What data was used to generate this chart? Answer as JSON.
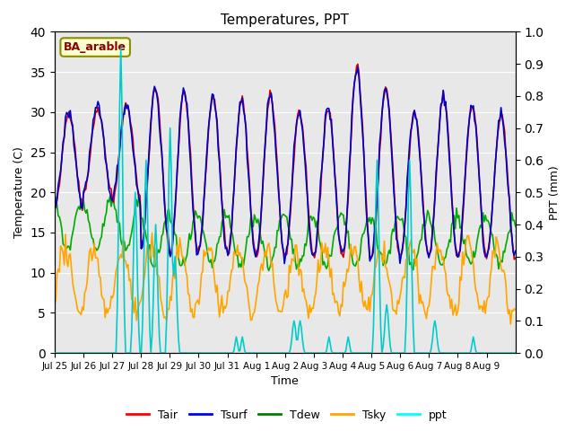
{
  "title": "Temperatures, PPT",
  "xlabel": "Time",
  "ylabel_left": "Temperature (C)",
  "ylabel_right": "PPT (mm)",
  "annotation": "BA_arable",
  "x_tick_labels": [
    "Jul 25",
    "Jul 26",
    "Jul 27",
    "Jul 28",
    "Jul 29",
    "Jul 30",
    "Jul 31",
    "Aug 1",
    "Aug 2",
    "Aug 3",
    "Aug 4",
    "Aug 5",
    "Aug 6",
    "Aug 7",
    "Aug 8",
    "Aug 9"
  ],
  "ylim_left": [
    0,
    40
  ],
  "ylim_right": [
    0.0,
    1.0
  ],
  "yticks_left": [
    0,
    5,
    10,
    15,
    20,
    25,
    30,
    35,
    40
  ],
  "yticks_right": [
    0.0,
    0.1,
    0.2,
    0.3,
    0.4,
    0.5,
    0.6,
    0.7,
    0.8,
    0.9,
    1.0
  ],
  "colors": {
    "Tair": "#cc0000",
    "Tsurf": "#0000cc",
    "Tdew": "#00aa00",
    "Tsky": "#ffa500",
    "ppt": "#00cccc"
  },
  "bg_color": "#e8e8e8"
}
